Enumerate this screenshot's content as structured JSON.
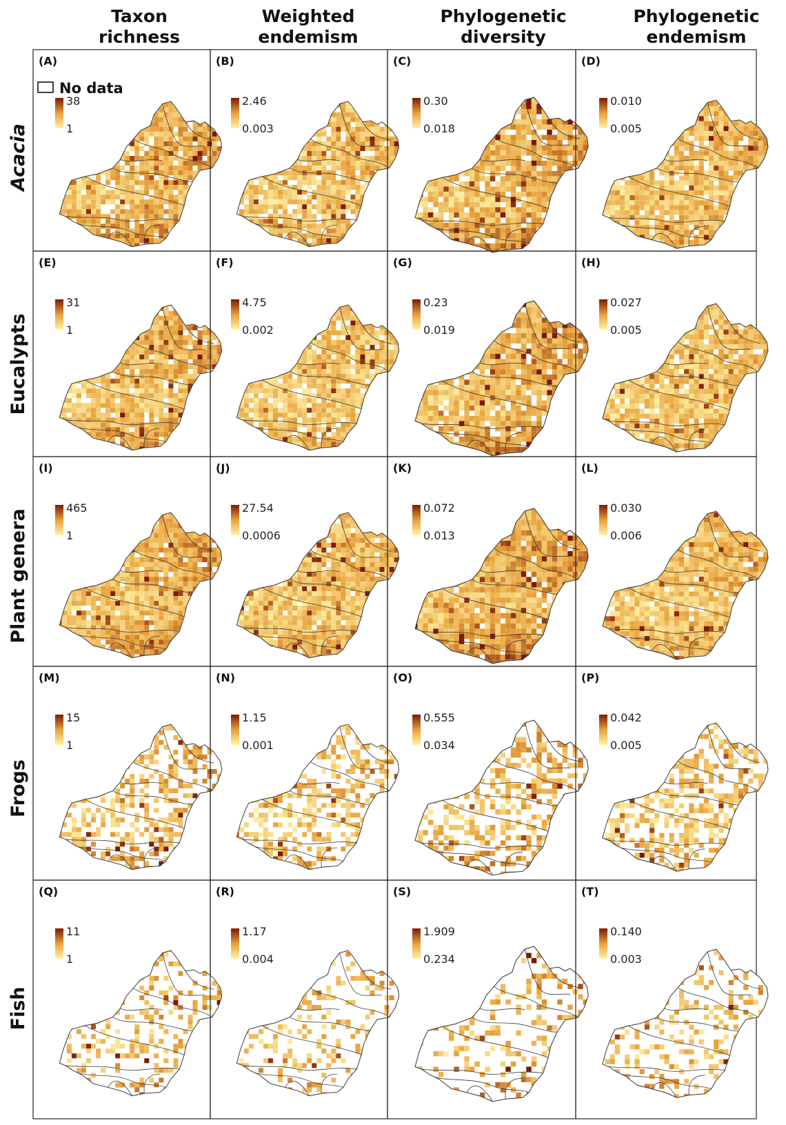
{
  "columns": [
    {
      "line1": "Taxon",
      "line2": "richness"
    },
    {
      "line1": "Weighted",
      "line2": "endemism"
    },
    {
      "line1": "Phylogenetic",
      "line2": "diversity"
    },
    {
      "line1": "Phylogenetic",
      "line2": "endemism"
    }
  ],
  "rows": [
    {
      "label": "Acacia",
      "italic": true
    },
    {
      "label": "Eucalypts",
      "italic": false
    },
    {
      "label": "Plant genera",
      "italic": false
    },
    {
      "label": "Frogs",
      "italic": false
    },
    {
      "label": "Fish",
      "italic": false
    }
  ],
  "no_data_label": "No data",
  "colors": {
    "low": "#fff3a8",
    "mid": "#e7a03a",
    "high": "#7a1a05",
    "outline": "#333333",
    "no_data_fill": "#ffffff"
  },
  "panels": [
    {
      "id": "(A)",
      "max": "38",
      "min": "1",
      "density": 0.9,
      "intensity": 0.55
    },
    {
      "id": "(B)",
      "max": "2.46",
      "min": "0.003",
      "density": 0.9,
      "intensity": 0.3
    },
    {
      "id": "(C)",
      "max": "0.30",
      "min": "0.018",
      "density": 0.9,
      "intensity": 0.6
    },
    {
      "id": "(D)",
      "max": "0.010",
      "min": "0.005",
      "density": 0.9,
      "intensity": 0.35
    },
    {
      "id": "(E)",
      "max": "31",
      "min": "1",
      "density": 0.9,
      "intensity": 0.45
    },
    {
      "id": "(F)",
      "max": "4.75",
      "min": "0.002",
      "density": 0.9,
      "intensity": 0.25
    },
    {
      "id": "(G)",
      "max": "0.23",
      "min": "0.019",
      "density": 0.9,
      "intensity": 0.6
    },
    {
      "id": "(H)",
      "max": "0.027",
      "min": "0.005",
      "density": 0.9,
      "intensity": 0.25
    },
    {
      "id": "(I)",
      "max": "465",
      "min": "1",
      "density": 0.95,
      "intensity": 0.6
    },
    {
      "id": "(J)",
      "max": "27.54",
      "min": "0.0006",
      "density": 0.95,
      "intensity": 0.3
    },
    {
      "id": "(K)",
      "max": "0.072",
      "min": "0.013",
      "density": 0.95,
      "intensity": 0.65
    },
    {
      "id": "(L)",
      "max": "0.030",
      "min": "0.006",
      "density": 0.95,
      "intensity": 0.35
    },
    {
      "id": "(M)",
      "max": "15",
      "min": "1",
      "density": 0.45,
      "intensity": 0.5
    },
    {
      "id": "(N)",
      "max": "1.15",
      "min": "0.001",
      "density": 0.45,
      "intensity": 0.3
    },
    {
      "id": "(O)",
      "max": "0.555",
      "min": "0.034",
      "density": 0.45,
      "intensity": 0.55
    },
    {
      "id": "(P)",
      "max": "0.042",
      "min": "0.005",
      "density": 0.45,
      "intensity": 0.3
    },
    {
      "id": "(Q)",
      "max": "11",
      "min": "1",
      "density": 0.25,
      "intensity": 0.5
    },
    {
      "id": "(R)",
      "max": "1.17",
      "min": "0.004",
      "density": 0.25,
      "intensity": 0.35
    },
    {
      "id": "(S)",
      "max": "1.909",
      "min": "0.234",
      "density": 0.25,
      "intensity": 0.55
    },
    {
      "id": "(T)",
      "max": "0.140",
      "min": "0.003",
      "density": 0.25,
      "intensity": 0.4
    }
  ]
}
